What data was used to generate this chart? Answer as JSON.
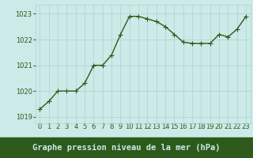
{
  "x": [
    0,
    1,
    2,
    3,
    4,
    5,
    6,
    7,
    8,
    9,
    10,
    11,
    12,
    13,
    14,
    15,
    16,
    17,
    18,
    19,
    20,
    21,
    22,
    23
  ],
  "y": [
    1019.3,
    1019.6,
    1020.0,
    1020.0,
    1020.0,
    1020.3,
    1021.0,
    1021.0,
    1021.4,
    1022.2,
    1022.9,
    1022.9,
    1022.8,
    1022.7,
    1022.5,
    1022.2,
    1021.9,
    1021.85,
    1021.85,
    1021.85,
    1022.2,
    1022.1,
    1022.4,
    1022.9
  ],
  "bg_color": "#cceae7",
  "line_color": "#2d5a1b",
  "marker_color": "#2d5a1b",
  "grid_color": "#aad4cf",
  "tick_color": "#2d5a1b",
  "xlim": [
    -0.5,
    23.5
  ],
  "ylim": [
    1018.75,
    1023.35
  ],
  "yticks": [
    1019,
    1020,
    1021,
    1022,
    1023
  ],
  "xtick_labels": [
    "0",
    "1",
    "2",
    "3",
    "4",
    "5",
    "6",
    "7",
    "8",
    "9",
    "10",
    "11",
    "12",
    "13",
    "14",
    "15",
    "16",
    "17",
    "18",
    "19",
    "20",
    "21",
    "22",
    "23"
  ],
  "xlabel": "Graphe pression niveau de la mer (hPa)",
  "xlabel_fontsize": 7.5,
  "tick_fontsize": 6.0,
  "linewidth": 1.0,
  "markersize": 2.0,
  "bottom_label_bg": "#2d5a1b",
  "bottom_label_fg": "#cceae7"
}
